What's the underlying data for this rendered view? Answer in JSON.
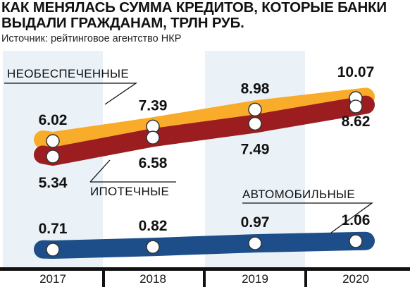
{
  "title": "КАК МЕНЯЛАСЬ СУММА КРЕДИТОВ, КОТОРЫЕ БАНКИ ВЫДАЛИ ГРАЖДАНАМ, ТРЛН РУБ.",
  "source": "Источник: рейтинговое агентство НКР",
  "colors": {
    "unsecured": "#f9ab2a",
    "mortgage": "#9b1d20",
    "auto": "#1d4e89",
    "band": "#eaf2f8"
  },
  "chart_data": {
    "type": "line",
    "title": "КАК МЕНЯЛАСЬ СУММА КРЕДИТОВ, КОТОРЫЕ БАНКИ ВЫДАЛИ ГРАЖДАНАМ, ТРЛН РУБ.",
    "categories": [
      "2017",
      "2018",
      "2019",
      "2020"
    ],
    "series": [
      {
        "name": "НЕОБЕСПЕЧЕННЫЕ",
        "values": [
          6.02,
          7.39,
          8.98,
          10.07
        ],
        "value_labels": [
          "6.02",
          "7.39",
          "8.98",
          "10.07"
        ]
      },
      {
        "name": "ИПОТЕЧНЫЕ",
        "values": [
          5.34,
          6.58,
          7.49,
          8.62
        ],
        "value_labels": [
          "5.34",
          "6.58",
          "7.49",
          "8.62"
        ]
      },
      {
        "name": "АВТОМОБИЛЬНЫЕ",
        "values": [
          0.71,
          0.82,
          0.97,
          1.06
        ],
        "value_labels": [
          "0.71",
          "0.82",
          "0.97",
          "1.06"
        ]
      }
    ],
    "grid": false,
    "legend": "inline labels"
  }
}
